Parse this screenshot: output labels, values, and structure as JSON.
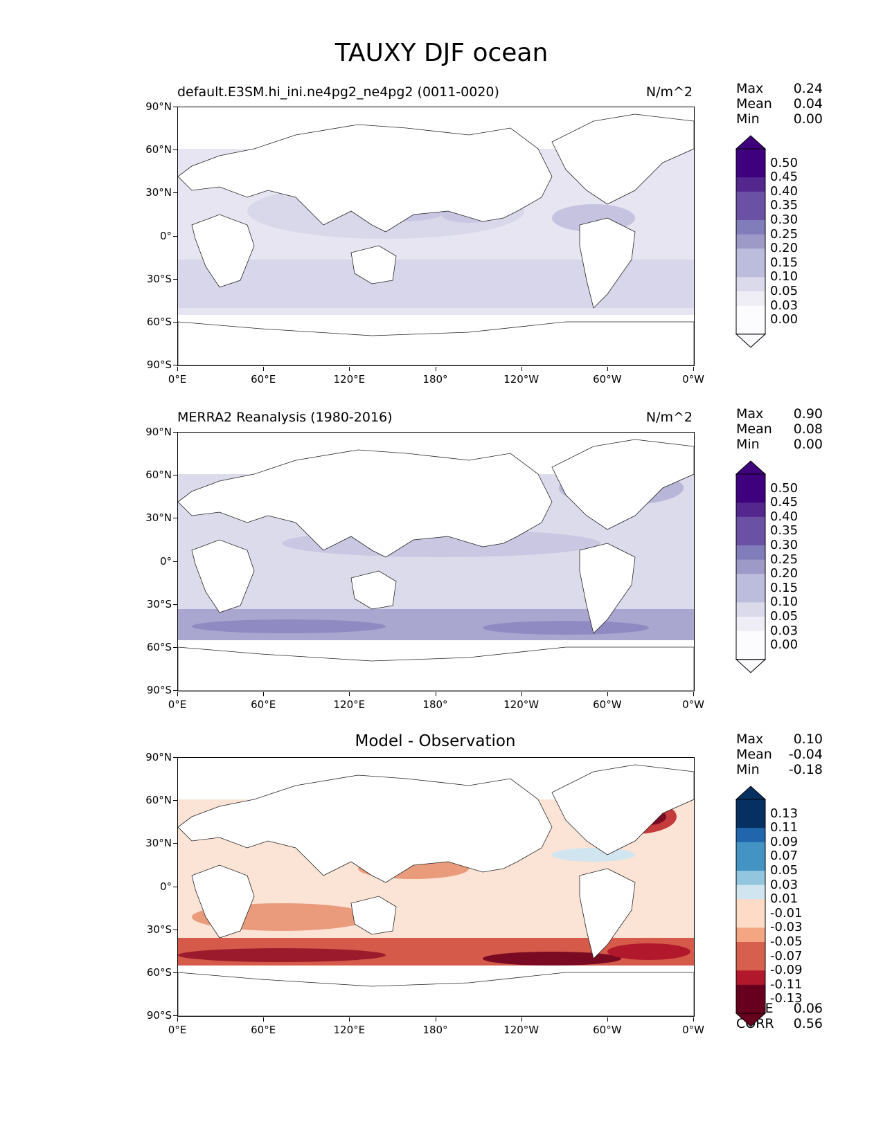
{
  "title": "TAUXY DJF ocean",
  "panels": [
    {
      "title_left": "default.E3SM.hi_ini.ne4pg2_ne4pg2 (0011-0020)",
      "title_right": "N/m^2",
      "stats": {
        "max_label": "Max",
        "max": "0.24",
        "mean_label": "Mean",
        "mean": "0.04",
        "min_label": "Min",
        "min": "0.00"
      },
      "colorbar": [
        "0.50",
        "0.45",
        "0.40",
        "0.35",
        "0.30",
        "0.25",
        "0.20",
        "0.15",
        "0.10",
        "0.05",
        "0.03",
        "0.00"
      ]
    },
    {
      "title_left": "MERRA2 Reanalysis (1980-2016)",
      "title_right": "N/m^2",
      "stats": {
        "max_label": "Max",
        "max": "0.90",
        "mean_label": "Mean",
        "mean": "0.08",
        "min_label": "Min",
        "min": "0.00"
      },
      "colorbar": [
        "0.50",
        "0.45",
        "0.40",
        "0.35",
        "0.30",
        "0.25",
        "0.20",
        "0.15",
        "0.10",
        "0.05",
        "0.03",
        "0.00"
      ]
    },
    {
      "title_center": "Model - Observation",
      "stats": {
        "max_label": "Max",
        "max": "0.10",
        "mean_label": "Mean",
        "mean": "-0.04",
        "min_label": "Min",
        "min": "-0.18"
      },
      "colorbar": [
        "0.13",
        "0.11",
        "0.09",
        "0.07",
        "0.05",
        "0.03",
        "0.01",
        "-0.01",
        "-0.03",
        "-0.05",
        "-0.07",
        "-0.09",
        "-0.11",
        "-0.13"
      ],
      "rmse_label": "RMSE",
      "rmse": "0.06",
      "corr_label": "CORR",
      "corr": "0.56"
    }
  ],
  "axes": {
    "yticks": [
      "90°N",
      "60°N",
      "30°N",
      "0°",
      "30°S",
      "60°S",
      "90°S"
    ],
    "xticks": [
      "0°E",
      "60°E",
      "120°E",
      "180°",
      "120°W",
      "60°W",
      "0°W"
    ]
  },
  "colors": {
    "sequential": [
      "#fcfbfd",
      "#efedf5",
      "#dadaeb",
      "#bcbddc",
      "#9e9ac8",
      "#807dba",
      "#6a51a3",
      "#54278f",
      "#3f007d"
    ],
    "diverging_neg": [
      "#fddbc7",
      "#f4a582",
      "#d6604d",
      "#b2182b",
      "#67001f"
    ],
    "diverging_pos": [
      "#d1e5f0",
      "#92c5de",
      "#4393c3",
      "#2166ac",
      "#053061"
    ]
  }
}
